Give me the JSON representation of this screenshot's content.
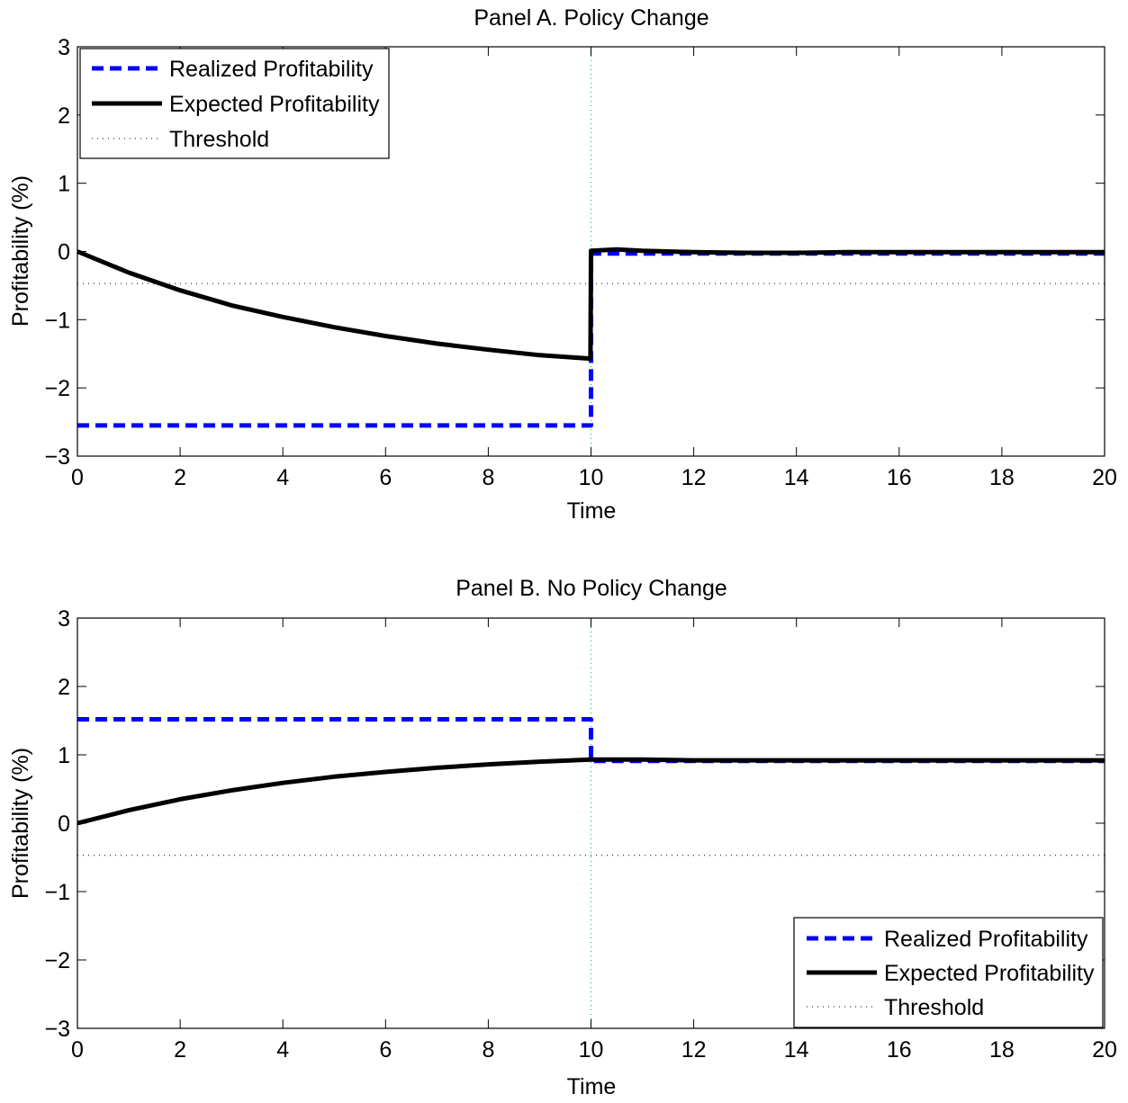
{
  "chart_data": [
    {
      "type": "line",
      "title": "Panel A. Policy Change",
      "xlabel": "Time",
      "ylabel": "Profitability (%)",
      "xlim": [
        0,
        20
      ],
      "ylim": [
        -3,
        3
      ],
      "xticks": [
        0,
        2,
        4,
        6,
        8,
        10,
        12,
        14,
        16,
        18,
        20
      ],
      "yticks": [
        3,
        2,
        1,
        0,
        -1,
        -2,
        -3
      ],
      "xtick_labels": [
        "0",
        "2",
        "4",
        "6",
        "8",
        "10",
        "12",
        "14",
        "16",
        "18",
        "20"
      ],
      "ytick_labels": [
        "3",
        "2",
        "1",
        "0",
        "−1",
        "−2",
        "−3"
      ],
      "grid": false,
      "legend_position": "top-left",
      "vline": {
        "x": 10,
        "color": "#00bfbf",
        "style": "dotted"
      },
      "series": [
        {
          "name": "Realized Profitability",
          "color": "#0000ff",
          "style": "dashed",
          "x": [
            0,
            10,
            10,
            20
          ],
          "y": [
            -2.55,
            -2.55,
            -0.03,
            -0.03
          ]
        },
        {
          "name": "Expected Profitability",
          "color": "#000000",
          "style": "solid",
          "x": [
            0,
            1,
            2,
            3,
            4,
            5,
            6,
            7,
            8,
            9,
            9.99,
            10,
            10.5,
            11,
            12,
            13,
            14,
            15,
            16,
            17,
            18,
            19,
            20
          ],
          "y": [
            0,
            -0.31,
            -0.57,
            -0.79,
            -0.96,
            -1.11,
            -1.24,
            -1.35,
            -1.44,
            -1.52,
            -1.57,
            0.01,
            0.03,
            0.01,
            -0.01,
            -0.02,
            -0.02,
            -0.01,
            -0.01,
            -0.01,
            -0.01,
            -0.01,
            -0.01
          ]
        },
        {
          "name": "Threshold",
          "color": "#000000",
          "style": "dotted",
          "x": [
            0,
            20
          ],
          "y": [
            -0.47,
            -0.47
          ]
        }
      ]
    },
    {
      "type": "line",
      "title": "Panel B. No Policy Change",
      "xlabel": "Time",
      "ylabel": "Profitability (%)",
      "xlim": [
        0,
        20
      ],
      "ylim": [
        -3,
        3
      ],
      "xticks": [
        0,
        2,
        4,
        6,
        8,
        10,
        12,
        14,
        16,
        18,
        20
      ],
      "yticks": [
        3,
        2,
        1,
        0,
        -1,
        -2,
        -3
      ],
      "xtick_labels": [
        "0",
        "2",
        "4",
        "6",
        "8",
        "10",
        "12",
        "14",
        "16",
        "18",
        "20"
      ],
      "ytick_labels": [
        "3",
        "2",
        "1",
        "0",
        "−1",
        "−2",
        "−3"
      ],
      "grid": false,
      "legend_position": "bottom-right",
      "vline": {
        "x": 10,
        "color": "#00bfbf",
        "style": "dotted"
      },
      "series": [
        {
          "name": "Realized Profitability",
          "color": "#0000ff",
          "style": "dashed",
          "x": [
            0,
            10,
            10,
            20
          ],
          "y": [
            1.52,
            1.52,
            0.91,
            0.91
          ]
        },
        {
          "name": "Expected Profitability",
          "color": "#000000",
          "style": "solid",
          "x": [
            0,
            1,
            2,
            3,
            4,
            5,
            6,
            7,
            8,
            9,
            10,
            11,
            12,
            14,
            16,
            18,
            20
          ],
          "y": [
            0,
            0.19,
            0.35,
            0.48,
            0.59,
            0.68,
            0.75,
            0.81,
            0.86,
            0.9,
            0.93,
            0.93,
            0.92,
            0.92,
            0.92,
            0.92,
            0.92
          ]
        },
        {
          "name": "Threshold",
          "color": "#000000",
          "style": "dotted",
          "x": [
            0,
            20
          ],
          "y": [
            -0.47,
            -0.47
          ]
        }
      ]
    }
  ]
}
